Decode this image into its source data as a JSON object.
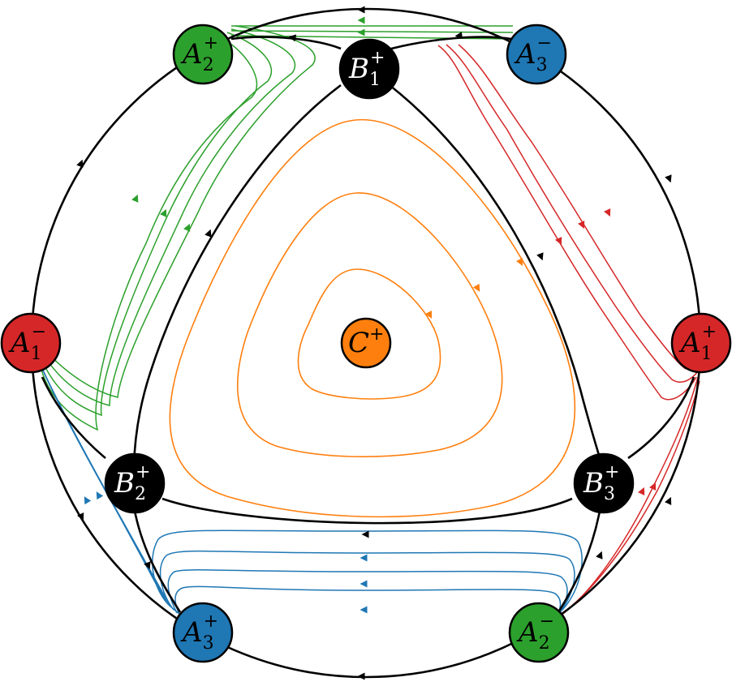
{
  "colors": {
    "black": "#000000",
    "green": "#2ca02c",
    "blue": "#1f77b4",
    "red": "#d62728",
    "orange": "#ff7f0e"
  },
  "nodes": [
    {
      "id": "A2p",
      "letter": "A",
      "sub": "2",
      "sup": "+",
      "color": "#2ca02c"
    },
    {
      "id": "B1p",
      "letter": "B",
      "sub": "1",
      "sup": "+",
      "color": "#000000"
    },
    {
      "id": "A3m",
      "letter": "A",
      "sub": "3",
      "sup": "−",
      "color": "#1f77b4"
    },
    {
      "id": "A1m",
      "letter": "A",
      "sub": "1",
      "sup": "−",
      "color": "#d62728"
    },
    {
      "id": "C",
      "letter": "C",
      "sub": "",
      "sup": "+",
      "color": "#ff7f0e"
    },
    {
      "id": "A1p",
      "letter": "A",
      "sub": "1",
      "sup": "+",
      "color": "#d62728"
    },
    {
      "id": "B2p",
      "letter": "B",
      "sub": "2",
      "sup": "+",
      "color": "#000000"
    },
    {
      "id": "B3p",
      "letter": "B",
      "sub": "3",
      "sup": "+",
      "color": "#000000"
    },
    {
      "id": "A3p",
      "letter": "A",
      "sub": "3",
      "sup": "+",
      "color": "#1f77b4"
    },
    {
      "id": "A2m",
      "letter": "A",
      "sub": "2",
      "sup": "−",
      "color": "#2ca02c"
    }
  ]
}
